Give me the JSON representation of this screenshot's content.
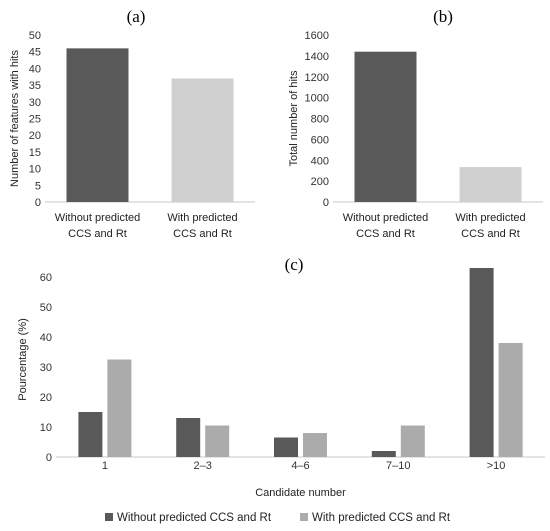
{
  "chart_data": [
    {
      "type": "bar",
      "panel_label": "(a)",
      "categories": [
        [
          "Without predicted",
          "CCS and Rt"
        ],
        [
          "With predicted",
          "CCS and Rt"
        ]
      ],
      "values": [
        46,
        37
      ],
      "colors": [
        "#595959",
        "#d0d0d0"
      ],
      "ylabel": "Number of features with hits",
      "ylim": [
        0,
        50
      ],
      "yticks": [
        0,
        5,
        10,
        15,
        20,
        25,
        30,
        35,
        40,
        45,
        50
      ],
      "grid": false
    },
    {
      "type": "bar",
      "panel_label": "(b)",
      "categories": [
        [
          "Without predicted",
          "CCS and Rt"
        ],
        [
          "With predicted",
          "CCS and Rt"
        ]
      ],
      "values": [
        1440,
        335
      ],
      "colors": [
        "#595959",
        "#d0d0d0"
      ],
      "ylabel": "Total number of hits",
      "ylim": [
        0,
        1600
      ],
      "yticks": [
        0,
        200,
        400,
        600,
        800,
        1000,
        1200,
        1400,
        1600
      ],
      "grid": false
    },
    {
      "type": "bar",
      "panel_label": "(c)",
      "categories": [
        "1",
        "2–3",
        "4–6",
        "7–10",
        ">10"
      ],
      "series": [
        {
          "name": "Without predicted CCS and Rt",
          "color": "#595959",
          "values": [
            15,
            13,
            6.5,
            2,
            63
          ]
        },
        {
          "name": "With predicted CCS and Rt",
          "color": "#ababab",
          "values": [
            32.5,
            10.5,
            8,
            10.5,
            38
          ]
        }
      ],
      "xlabel": "Candidate number",
      "ylabel": "Pourcentage (%)",
      "ylim": [
        0,
        65
      ],
      "yticks": [
        0,
        10,
        20,
        30,
        40,
        50,
        60
      ],
      "legend": "bottom",
      "grid": false
    }
  ]
}
